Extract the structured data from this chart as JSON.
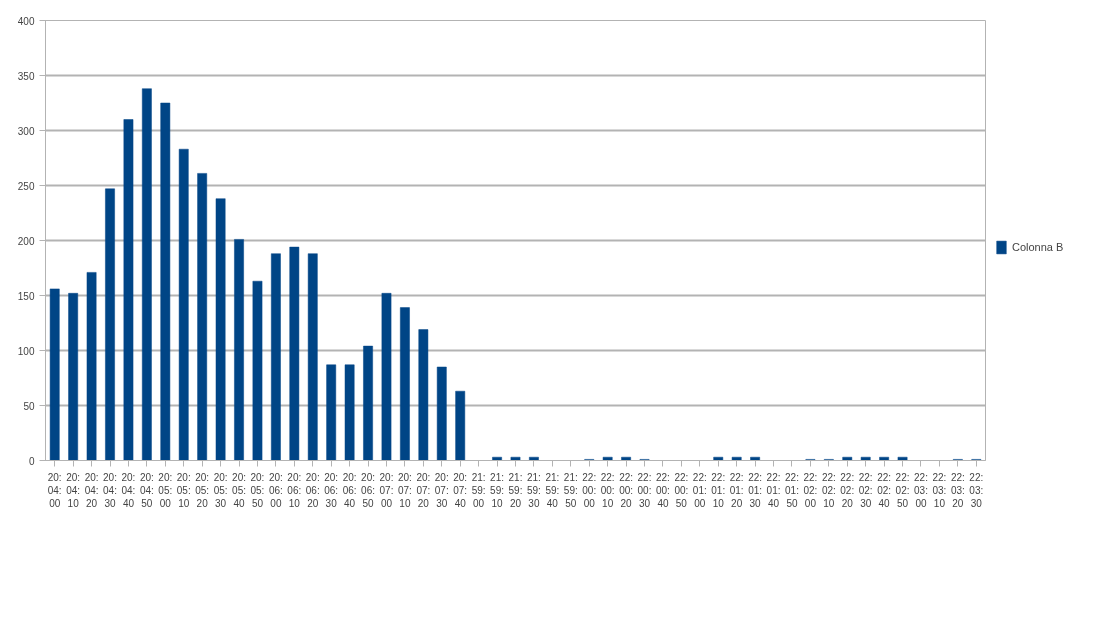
{
  "chart_data": {
    "type": "bar",
    "categories": [
      "20:04:00",
      "20:04:10",
      "20:04:20",
      "20:04:30",
      "20:04:40",
      "20:04:50",
      "20:05:00",
      "20:05:10",
      "20:05:20",
      "20:05:30",
      "20:05:40",
      "20:05:50",
      "20:06:00",
      "20:06:10",
      "20:06:20",
      "20:06:30",
      "20:06:40",
      "20:06:50",
      "20:07:00",
      "20:07:10",
      "20:07:20",
      "20:07:30",
      "20:07:40",
      "21:59:00",
      "21:59:10",
      "21:59:20",
      "21:59:30",
      "21:59:40",
      "21:59:50",
      "22:00:00",
      "22:00:10",
      "22:00:20",
      "22:00:30",
      "22:00:40",
      "22:00:50",
      "22:01:00",
      "22:01:10",
      "22:01:20",
      "22:01:30",
      "22:01:40",
      "22:01:50",
      "22:02:00",
      "22:02:10",
      "22:02:20",
      "22:02:30",
      "22:02:40",
      "22:02:50",
      "22:03:00",
      "22:03:10",
      "22:03:20",
      "22:03:30"
    ],
    "series": [
      {
        "name": "Colonna B",
        "color": "#004586",
        "values": [
          156,
          152,
          171,
          247,
          310,
          338,
          325,
          283,
          261,
          238,
          201,
          163,
          188,
          194,
          188,
          87,
          87,
          104,
          152,
          139,
          119,
          85,
          63,
          0,
          3,
          3,
          3,
          0,
          0,
          1,
          3,
          3,
          1,
          0,
          0,
          0,
          3,
          3,
          3,
          0,
          0,
          1,
          1,
          3,
          3,
          3,
          3,
          0,
          0,
          1,
          1
        ]
      }
    ],
    "ylim": [
      0,
      400
    ],
    "yticks": [
      0,
      50,
      100,
      150,
      200,
      250,
      300,
      350,
      400
    ],
    "grid": "y",
    "legend": "right"
  }
}
